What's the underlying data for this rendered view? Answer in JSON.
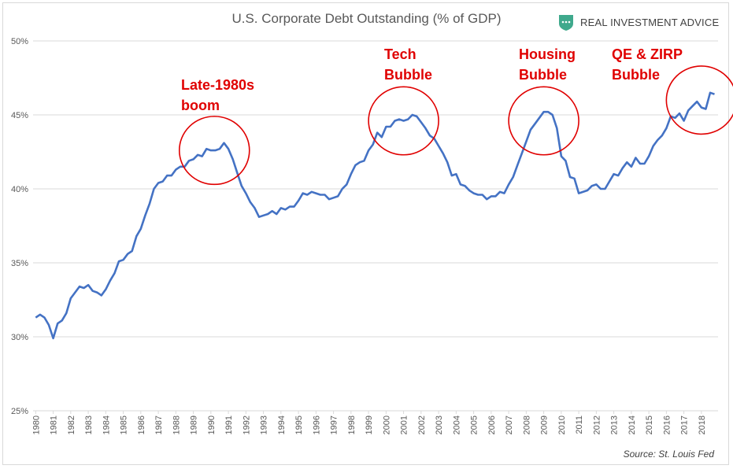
{
  "header": {
    "title": "U.S. Corporate Debt Outstanding (% of GDP)",
    "brand": "REAL INVESTMENT ADVICE",
    "source": "Source: St. Louis Fed"
  },
  "colors": {
    "line": "#4472c4",
    "annotation": "#e00000",
    "grid": "#d9d9d9",
    "logo": "#3fa98c"
  },
  "chart_data": {
    "type": "line",
    "title": "U.S. Corporate Debt Outstanding (% of GDP)",
    "xlabel": "",
    "ylabel": "",
    "ylim": [
      25,
      50
    ],
    "y_ticks": [
      25,
      30,
      35,
      40,
      45,
      50
    ],
    "y_tick_labels": [
      "25%",
      "30%",
      "35%",
      "40%",
      "45%",
      "50%"
    ],
    "x_range": [
      1980,
      2018.75
    ],
    "x_ticks": [
      1980,
      1981,
      1982,
      1983,
      1984,
      1985,
      1986,
      1987,
      1988,
      1989,
      1990,
      1991,
      1992,
      1993,
      1994,
      1995,
      1996,
      1997,
      1998,
      1999,
      2000,
      2001,
      2002,
      2003,
      2004,
      2005,
      2006,
      2007,
      2008,
      2009,
      2010,
      2011,
      2012,
      2013,
      2014,
      2015,
      2016,
      2017,
      2018
    ],
    "grid": true,
    "legend": "none",
    "series": [
      {
        "points": [
          [
            1980.0,
            31.3
          ],
          [
            1980.25,
            31.5
          ],
          [
            1980.5,
            31.3
          ],
          [
            1980.75,
            30.8
          ],
          [
            1981.0,
            29.9
          ],
          [
            1981.25,
            30.9
          ],
          [
            1981.5,
            31.1
          ],
          [
            1981.75,
            31.6
          ],
          [
            1982.0,
            32.6
          ],
          [
            1982.25,
            33.0
          ],
          [
            1982.5,
            33.4
          ],
          [
            1982.75,
            33.3
          ],
          [
            1983.0,
            33.5
          ],
          [
            1983.25,
            33.1
          ],
          [
            1983.5,
            33.0
          ],
          [
            1983.75,
            32.8
          ],
          [
            1984.0,
            33.2
          ],
          [
            1984.25,
            33.8
          ],
          [
            1984.5,
            34.3
          ],
          [
            1984.75,
            35.1
          ],
          [
            1985.0,
            35.2
          ],
          [
            1985.25,
            35.6
          ],
          [
            1985.5,
            35.8
          ],
          [
            1985.75,
            36.8
          ],
          [
            1986.0,
            37.3
          ],
          [
            1986.25,
            38.2
          ],
          [
            1986.5,
            39.0
          ],
          [
            1986.75,
            40.0
          ],
          [
            1987.0,
            40.4
          ],
          [
            1987.25,
            40.5
          ],
          [
            1987.5,
            40.9
          ],
          [
            1987.75,
            40.9
          ],
          [
            1988.0,
            41.3
          ],
          [
            1988.25,
            41.5
          ],
          [
            1988.5,
            41.5
          ],
          [
            1988.75,
            41.9
          ],
          [
            1989.0,
            42.0
          ],
          [
            1989.25,
            42.3
          ],
          [
            1989.5,
            42.2
          ],
          [
            1989.75,
            42.7
          ],
          [
            1990.0,
            42.6
          ],
          [
            1990.25,
            42.6
          ],
          [
            1990.5,
            42.7
          ],
          [
            1990.75,
            43.1
          ],
          [
            1991.0,
            42.7
          ],
          [
            1991.25,
            42.0
          ],
          [
            1991.5,
            41.1
          ],
          [
            1991.75,
            40.2
          ],
          [
            1992.0,
            39.7
          ],
          [
            1992.25,
            39.1
          ],
          [
            1992.5,
            38.7
          ],
          [
            1992.75,
            38.1
          ],
          [
            1993.0,
            38.2
          ],
          [
            1993.25,
            38.3
          ],
          [
            1993.5,
            38.5
          ],
          [
            1993.75,
            38.3
          ],
          [
            1994.0,
            38.7
          ],
          [
            1994.25,
            38.6
          ],
          [
            1994.5,
            38.8
          ],
          [
            1994.75,
            38.8
          ],
          [
            1995.0,
            39.2
          ],
          [
            1995.25,
            39.7
          ],
          [
            1995.5,
            39.6
          ],
          [
            1995.75,
            39.8
          ],
          [
            1996.0,
            39.7
          ],
          [
            1996.25,
            39.6
          ],
          [
            1996.5,
            39.6
          ],
          [
            1996.75,
            39.3
          ],
          [
            1997.0,
            39.4
          ],
          [
            1997.25,
            39.5
          ],
          [
            1997.5,
            40.0
          ],
          [
            1997.75,
            40.3
          ],
          [
            1998.0,
            41.0
          ],
          [
            1998.25,
            41.6
          ],
          [
            1998.5,
            41.8
          ],
          [
            1998.75,
            41.9
          ],
          [
            1999.0,
            42.6
          ],
          [
            1999.25,
            43.0
          ],
          [
            1999.5,
            43.8
          ],
          [
            1999.75,
            43.5
          ],
          [
            2000.0,
            44.2
          ],
          [
            2000.25,
            44.2
          ],
          [
            2000.5,
            44.6
          ],
          [
            2000.75,
            44.7
          ],
          [
            2001.0,
            44.6
          ],
          [
            2001.25,
            44.7
          ],
          [
            2001.5,
            45.0
          ],
          [
            2001.75,
            44.9
          ],
          [
            2002.0,
            44.5
          ],
          [
            2002.25,
            44.1
          ],
          [
            2002.5,
            43.6
          ],
          [
            2002.75,
            43.4
          ],
          [
            2003.0,
            42.9
          ],
          [
            2003.25,
            42.4
          ],
          [
            2003.5,
            41.8
          ],
          [
            2003.75,
            40.9
          ],
          [
            2004.0,
            41.0
          ],
          [
            2004.25,
            40.3
          ],
          [
            2004.5,
            40.2
          ],
          [
            2004.75,
            39.9
          ],
          [
            2005.0,
            39.7
          ],
          [
            2005.25,
            39.6
          ],
          [
            2005.5,
            39.6
          ],
          [
            2005.75,
            39.3
          ],
          [
            2006.0,
            39.5
          ],
          [
            2006.25,
            39.5
          ],
          [
            2006.5,
            39.8
          ],
          [
            2006.75,
            39.7
          ],
          [
            2007.0,
            40.3
          ],
          [
            2007.25,
            40.8
          ],
          [
            2007.5,
            41.6
          ],
          [
            2007.75,
            42.4
          ],
          [
            2008.0,
            43.2
          ],
          [
            2008.25,
            44.0
          ],
          [
            2008.5,
            44.4
          ],
          [
            2008.75,
            44.8
          ],
          [
            2009.0,
            45.2
          ],
          [
            2009.25,
            45.2
          ],
          [
            2009.5,
            45.0
          ],
          [
            2009.75,
            44.1
          ],
          [
            2010.0,
            42.2
          ],
          [
            2010.25,
            41.9
          ],
          [
            2010.5,
            40.8
          ],
          [
            2010.75,
            40.7
          ],
          [
            2011.0,
            39.7
          ],
          [
            2011.25,
            39.8
          ],
          [
            2011.5,
            39.9
          ],
          [
            2011.75,
            40.2
          ],
          [
            2012.0,
            40.3
          ],
          [
            2012.25,
            40.0
          ],
          [
            2012.5,
            40.0
          ],
          [
            2012.75,
            40.5
          ],
          [
            2013.0,
            41.0
          ],
          [
            2013.25,
            40.9
          ],
          [
            2013.5,
            41.4
          ],
          [
            2013.75,
            41.8
          ],
          [
            2014.0,
            41.5
          ],
          [
            2014.25,
            42.1
          ],
          [
            2014.5,
            41.7
          ],
          [
            2014.75,
            41.7
          ],
          [
            2015.0,
            42.2
          ],
          [
            2015.25,
            42.9
          ],
          [
            2015.5,
            43.3
          ],
          [
            2015.75,
            43.6
          ],
          [
            2016.0,
            44.1
          ],
          [
            2016.25,
            44.9
          ],
          [
            2016.5,
            44.8
          ],
          [
            2016.75,
            45.1
          ],
          [
            2017.0,
            44.6
          ],
          [
            2017.25,
            45.3
          ],
          [
            2017.5,
            45.6
          ],
          [
            2017.75,
            45.9
          ],
          [
            2018.0,
            45.5
          ],
          [
            2018.25,
            45.4
          ],
          [
            2018.5,
            46.5
          ],
          [
            2018.75,
            46.4
          ]
        ]
      }
    ],
    "annotations": [
      {
        "lines": [
          "Late-1980s",
          "boom"
        ],
        "circle": {
          "x": 1990.2,
          "y": 42.6,
          "rx_years": 2.0,
          "ry_pct": 2.3
        }
      },
      {
        "lines": [
          "Tech",
          "Bubble"
        ],
        "circle": {
          "x": 2001.0,
          "y": 44.6,
          "rx_years": 2.0,
          "ry_pct": 2.3
        }
      },
      {
        "lines": [
          "Housing",
          "Bubble"
        ],
        "circle": {
          "x": 2009.0,
          "y": 44.6,
          "rx_years": 2.0,
          "ry_pct": 2.3
        }
      },
      {
        "lines": [
          "QE & ZIRP",
          "Bubble"
        ],
        "circle": {
          "x": 2018.0,
          "y": 46.0,
          "rx_years": 2.0,
          "ry_pct": 2.3
        }
      }
    ]
  }
}
